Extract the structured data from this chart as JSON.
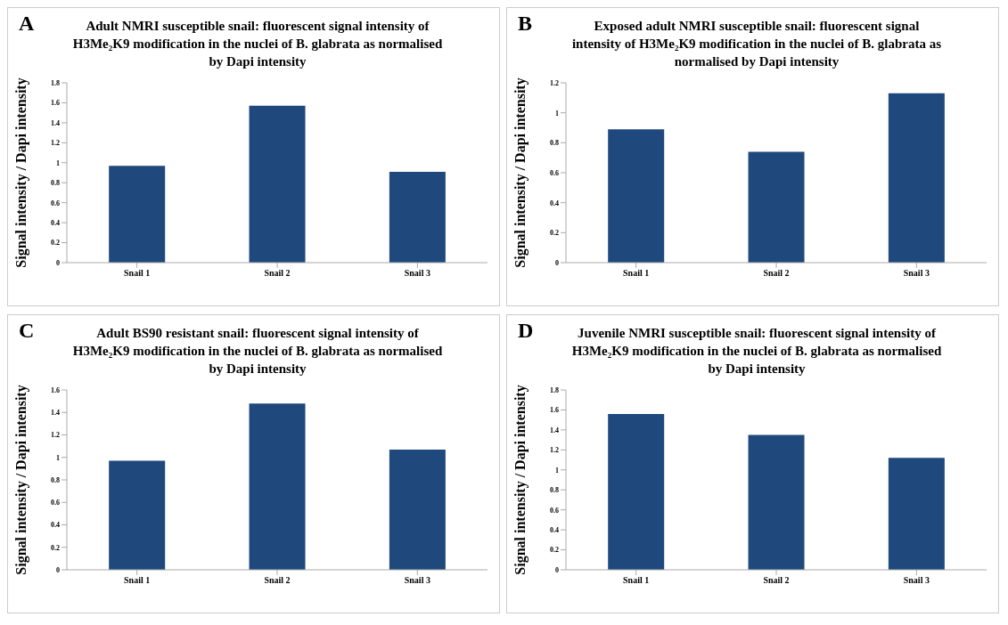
{
  "chart_data": [
    {
      "type": "bar",
      "annotations": [
        "A"
      ],
      "title": "Adult NMRI susceptible snail: fluorescent signal intensity of H3Me₂K9 modification in the nuclei of B. glabrata as normalised by Dapi intensity",
      "ylabel": "Signal intensity / Dapi intensity",
      "categories": [
        "Snail 1",
        "Snail 2",
        "Snail 3"
      ],
      "values": [
        0.97,
        1.57,
        0.91
      ],
      "color": "#1f497d",
      "ylim": [
        0,
        1.8
      ],
      "yticks": [
        0,
        0.2,
        0.4,
        0.6,
        0.8,
        1,
        1.2,
        1.4,
        1.6,
        1.8
      ],
      "grid": false,
      "legend": false
    },
    {
      "type": "bar",
      "annotations": [
        "B"
      ],
      "title": "Exposed adult NMRI susceptible snail: fluorescent signal intensity of H3Me₂K9 modification in the nuclei of B. glabrata as normalised by Dapi intensity",
      "ylabel": "Signal intensity / Dapi intensity",
      "categories": [
        "Snail 1",
        "Snail 2",
        "Snail 3"
      ],
      "values": [
        0.89,
        0.74,
        1.13
      ],
      "color": "#1f497d",
      "ylim": [
        0,
        1.2
      ],
      "yticks": [
        0,
        0.2,
        0.4,
        0.6,
        0.8,
        1,
        1.2
      ],
      "grid": false,
      "legend": false
    },
    {
      "type": "bar",
      "annotations": [
        "C"
      ],
      "title": "Adult BS90 resistant snail: fluorescent signal intensity of H3Me₂K9 modification in the nuclei of B. glabrata as normalised by Dapi intensity",
      "ylabel": "Signal intensity / Dapi intensity",
      "categories": [
        "Snail 1",
        "Snail 2",
        "Snail 3"
      ],
      "values": [
        0.97,
        1.48,
        1.07
      ],
      "color": "#1f497d",
      "ylim": [
        0,
        1.6
      ],
      "yticks": [
        0,
        0.2,
        0.4,
        0.6,
        0.8,
        1,
        1.2,
        1.4,
        1.6
      ],
      "grid": false,
      "legend": false
    },
    {
      "type": "bar",
      "annotations": [
        "D"
      ],
      "title": "Juvenile NMRI susceptible snail: fluorescent signal intensity of H3Me₂K9 modification in the nuclei of B. glabrata as normalised by Dapi intensity",
      "ylabel": "Signal intensity / Dapi intensity",
      "categories": [
        "Snail 1",
        "Snail 2",
        "Snail 3"
      ],
      "values": [
        1.56,
        1.35,
        1.12
      ],
      "color": "#1f497d",
      "ylim": [
        0,
        1.8
      ],
      "yticks": [
        0,
        0.2,
        0.4,
        0.6,
        0.8,
        1,
        1.2,
        1.4,
        1.6,
        1.8
      ],
      "grid": false,
      "legend": false
    }
  ]
}
